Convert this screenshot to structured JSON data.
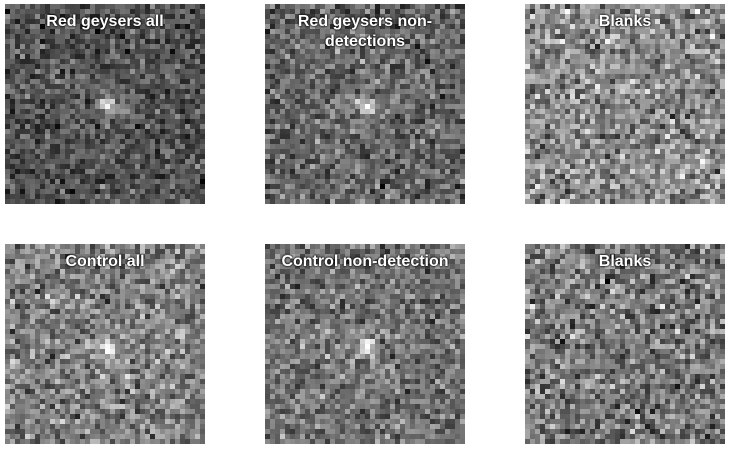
{
  "panels": [
    {
      "title": "Red geysers all",
      "brightness": 0.32,
      "contrast": 0.16,
      "source_peak": 0.62,
      "has_source": true
    },
    {
      "title": "Red geysers non-\ndetections",
      "brightness": 0.4,
      "contrast": 0.18,
      "source_peak": 0.55,
      "has_source": true
    },
    {
      "title": "Blanks",
      "brightness": 0.55,
      "contrast": 0.22,
      "source_peak": 0.0,
      "has_source": false
    },
    {
      "title": "Control all",
      "brightness": 0.5,
      "contrast": 0.2,
      "source_peak": 0.4,
      "has_source": true
    },
    {
      "title": "Control non-detection",
      "brightness": 0.45,
      "contrast": 0.18,
      "source_peak": 0.5,
      "has_source": true
    },
    {
      "title": "Blanks",
      "brightness": 0.48,
      "contrast": 0.22,
      "source_peak": 0.0,
      "has_source": false
    }
  ]
}
